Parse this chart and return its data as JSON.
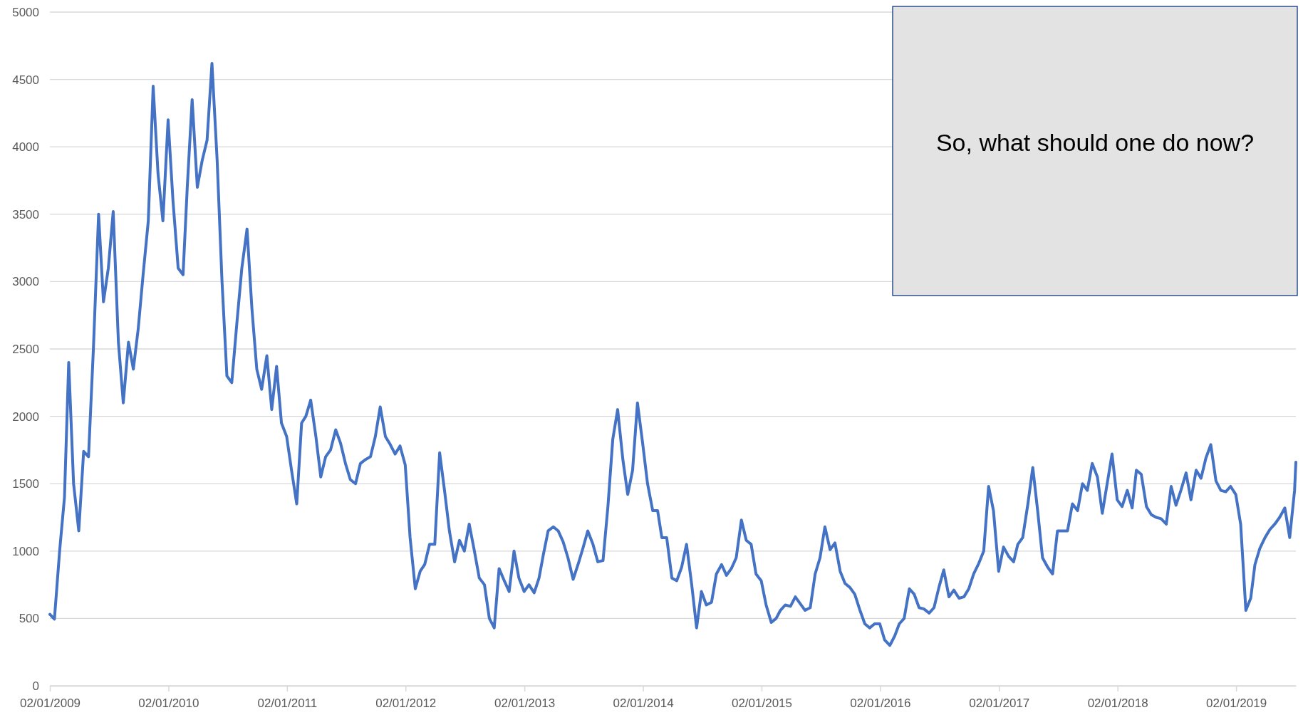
{
  "chart_data": {
    "type": "line",
    "xlim": [
      "2009-01-02",
      "2019-07-05"
    ],
    "ylim": [
      0,
      5000
    ],
    "yticks": [
      0,
      500,
      1000,
      1500,
      2000,
      2500,
      3000,
      3500,
      4000,
      4500,
      5000
    ],
    "xticks": [
      {
        "value": "2009-01-02",
        "label": "02/01/2009"
      },
      {
        "value": "2010-01-02",
        "label": "02/01/2010"
      },
      {
        "value": "2011-01-02",
        "label": "02/01/2011"
      },
      {
        "value": "2012-01-02",
        "label": "02/01/2012"
      },
      {
        "value": "2013-01-02",
        "label": "02/01/2013"
      },
      {
        "value": "2014-01-02",
        "label": "02/01/2014"
      },
      {
        "value": "2015-01-02",
        "label": "02/01/2015"
      },
      {
        "value": "2016-01-02",
        "label": "02/01/2016"
      },
      {
        "value": "2017-01-02",
        "label": "02/01/2017"
      },
      {
        "value": "2018-01-02",
        "label": "02/01/2018"
      },
      {
        "value": "2019-01-02",
        "label": "02/01/2019"
      }
    ],
    "grid": "y",
    "marker": "none",
    "line_style": "solid",
    "annotations": [
      "So, what should one do now?"
    ],
    "x": [
      "2009-01-02",
      "2009-01-16",
      "2009-02-01",
      "2009-02-16",
      "2009-03-01",
      "2009-03-16",
      "2009-04-01",
      "2009-04-16",
      "2009-05-01",
      "2009-05-16",
      "2009-06-01",
      "2009-06-16",
      "2009-07-01",
      "2009-07-16",
      "2009-08-01",
      "2009-08-16",
      "2009-09-01",
      "2009-09-16",
      "2009-10-01",
      "2009-10-16",
      "2009-11-01",
      "2009-11-16",
      "2009-12-01",
      "2009-12-16",
      "2010-01-01",
      "2010-01-16",
      "2010-02-01",
      "2010-02-16",
      "2010-03-01",
      "2010-03-16",
      "2010-04-01",
      "2010-04-16",
      "2010-05-01",
      "2010-05-16",
      "2010-06-01",
      "2010-06-16",
      "2010-07-01",
      "2010-07-16",
      "2010-08-01",
      "2010-08-16",
      "2010-09-01",
      "2010-09-16",
      "2010-10-01",
      "2010-10-16",
      "2010-11-01",
      "2010-11-16",
      "2010-12-01",
      "2010-12-16",
      "2011-01-01",
      "2011-01-16",
      "2011-02-01",
      "2011-02-16",
      "2011-03-01",
      "2011-03-16",
      "2011-04-01",
      "2011-04-16",
      "2011-05-01",
      "2011-05-16",
      "2011-06-01",
      "2011-06-16",
      "2011-07-01",
      "2011-07-16",
      "2011-08-01",
      "2011-08-16",
      "2011-09-01",
      "2011-09-16",
      "2011-10-01",
      "2011-10-16",
      "2011-11-01",
      "2011-11-16",
      "2011-12-01",
      "2011-12-16",
      "2012-01-01",
      "2012-01-16",
      "2012-02-01",
      "2012-02-16",
      "2012-03-01",
      "2012-03-16",
      "2012-04-01",
      "2012-04-16",
      "2012-05-01",
      "2012-05-16",
      "2012-06-01",
      "2012-06-16",
      "2012-07-01",
      "2012-07-16",
      "2012-08-01",
      "2012-08-16",
      "2012-09-01",
      "2012-09-16",
      "2012-10-01",
      "2012-10-16",
      "2012-11-01",
      "2012-11-16",
      "2012-12-01",
      "2012-12-16",
      "2013-01-01",
      "2013-01-16",
      "2013-02-01",
      "2013-02-16",
      "2013-03-01",
      "2013-03-16",
      "2013-04-01",
      "2013-04-16",
      "2013-05-01",
      "2013-05-16",
      "2013-06-01",
      "2013-06-16",
      "2013-07-01",
      "2013-07-16",
      "2013-08-01",
      "2013-08-16",
      "2013-09-01",
      "2013-09-16",
      "2013-10-01",
      "2013-10-16",
      "2013-11-01",
      "2013-11-16",
      "2013-12-01",
      "2013-12-16",
      "2014-01-01",
      "2014-01-16",
      "2014-02-01",
      "2014-02-16",
      "2014-03-01",
      "2014-03-16",
      "2014-04-01",
      "2014-04-16",
      "2014-05-01",
      "2014-05-16",
      "2014-06-01",
      "2014-06-16",
      "2014-07-01",
      "2014-07-16",
      "2014-08-01",
      "2014-08-16",
      "2014-09-01",
      "2014-09-16",
      "2014-10-01",
      "2014-10-16",
      "2014-11-01",
      "2014-11-16",
      "2014-12-01",
      "2014-12-16",
      "2015-01-01",
      "2015-01-16",
      "2015-02-01",
      "2015-02-16",
      "2015-03-01",
      "2015-03-16",
      "2015-04-01",
      "2015-04-16",
      "2015-05-01",
      "2015-05-16",
      "2015-06-01",
      "2015-06-16",
      "2015-07-01",
      "2015-07-16",
      "2015-08-01",
      "2015-08-16",
      "2015-09-01",
      "2015-09-16",
      "2015-10-01",
      "2015-10-16",
      "2015-11-01",
      "2015-11-16",
      "2015-12-01",
      "2015-12-16",
      "2016-01-01",
      "2016-01-16",
      "2016-02-01",
      "2016-02-16",
      "2016-03-01",
      "2016-03-16",
      "2016-04-01",
      "2016-04-16",
      "2016-05-01",
      "2016-05-16",
      "2016-06-01",
      "2016-06-16",
      "2016-07-01",
      "2016-07-16",
      "2016-08-01",
      "2016-08-16",
      "2016-09-01",
      "2016-09-16",
      "2016-10-01",
      "2016-10-16",
      "2016-11-01",
      "2016-11-16",
      "2016-12-01",
      "2016-12-16",
      "2017-01-01",
      "2017-01-16",
      "2017-02-01",
      "2017-02-16",
      "2017-03-01",
      "2017-03-16",
      "2017-04-01",
      "2017-04-16",
      "2017-05-01",
      "2017-05-16",
      "2017-06-01",
      "2017-06-16",
      "2017-07-01",
      "2017-07-16",
      "2017-08-01",
      "2017-08-16",
      "2017-09-01",
      "2017-09-16",
      "2017-10-01",
      "2017-10-16",
      "2017-11-01",
      "2017-11-16",
      "2017-12-01",
      "2017-12-16",
      "2018-01-01",
      "2018-01-16",
      "2018-02-01",
      "2018-02-16",
      "2018-03-01",
      "2018-03-16",
      "2018-04-01",
      "2018-04-16",
      "2018-05-01",
      "2018-05-16",
      "2018-06-01",
      "2018-06-16",
      "2018-07-01",
      "2018-07-16",
      "2018-08-01",
      "2018-08-16",
      "2018-09-01",
      "2018-09-16",
      "2018-10-01",
      "2018-10-16",
      "2018-11-01",
      "2018-11-16",
      "2018-12-01",
      "2018-12-16",
      "2019-01-01",
      "2019-01-16",
      "2019-02-01",
      "2019-02-16",
      "2019-03-01",
      "2019-03-16",
      "2019-04-01",
      "2019-04-16",
      "2019-05-01",
      "2019-05-16",
      "2019-06-01",
      "2019-06-16",
      "2019-07-01",
      "2019-07-05"
    ],
    "series": [
      {
        "color": "#4472c4",
        "values": [
          530,
          495,
          1000,
          1400,
          2400,
          1500,
          1150,
          1740,
          1700,
          2500,
          3500,
          2850,
          3100,
          3520,
          2550,
          2100,
          2550,
          2350,
          2650,
          3050,
          3450,
          4450,
          3800,
          3450,
          4200,
          3600,
          3100,
          3050,
          3700,
          4350,
          3700,
          3900,
          4050,
          4620,
          3900,
          3000,
          2300,
          2250,
          2700,
          3100,
          3390,
          2800,
          2350,
          2200,
          2450,
          2050,
          2370,
          1950,
          1850,
          1600,
          1350,
          1950,
          2000,
          2120,
          1850,
          1550,
          1700,
          1750,
          1900,
          1800,
          1650,
          1530,
          1500,
          1650,
          1680,
          1700,
          1850,
          2070,
          1850,
          1790,
          1720,
          1780,
          1640,
          1100,
          720,
          850,
          900,
          1050,
          1050,
          1730,
          1450,
          1150,
          920,
          1080,
          1000,
          1200,
          1000,
          800,
          750,
          500,
          430,
          870,
          780,
          700,
          1000,
          800,
          700,
          750,
          690,
          800,
          970,
          1150,
          1180,
          1150,
          1070,
          950,
          790,
          900,
          1020,
          1150,
          1050,
          920,
          930,
          1330,
          1830,
          2050,
          1680,
          1420,
          1600,
          2100,
          1800,
          1500,
          1300,
          1300,
          1100,
          1100,
          800,
          780,
          880,
          1050,
          750,
          430,
          700,
          600,
          620,
          830,
          900,
          820,
          870,
          950,
          1230,
          1080,
          1050,
          830,
          780,
          600,
          470,
          500,
          560,
          600,
          590,
          660,
          610,
          560,
          580,
          830,
          950,
          1180,
          1010,
          1060,
          850,
          760,
          730,
          680,
          560,
          460,
          430,
          460,
          460,
          340,
          300,
          370,
          460,
          500,
          720,
          680,
          580,
          570,
          540,
          580,
          730,
          860,
          660,
          710,
          650,
          660,
          720,
          830,
          910,
          1000,
          1480,
          1300,
          850,
          1030,
          960,
          920,
          1050,
          1100,
          1350,
          1620,
          1300,
          950,
          880,
          830,
          1150,
          1150,
          1150,
          1350,
          1300,
          1500,
          1450,
          1650,
          1550,
          1280,
          1500,
          1720,
          1380,
          1330,
          1450,
          1320,
          1600,
          1570,
          1330,
          1270,
          1250,
          1240,
          1200,
          1480,
          1340,
          1450,
          1580,
          1380,
          1600,
          1540,
          1690,
          1790,
          1520,
          1450,
          1440,
          1480,
          1420,
          1200,
          560,
          650,
          900,
          1020,
          1100,
          1160,
          1200,
          1250,
          1320,
          1100,
          1450,
          1660
        ]
      }
    ]
  }
}
